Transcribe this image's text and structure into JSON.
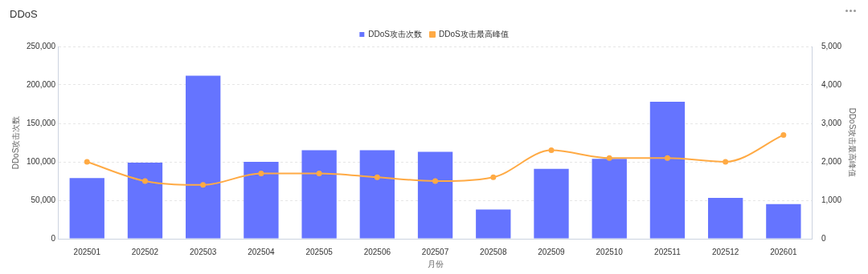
{
  "chart_data": {
    "type": "bar",
    "title": "DDoS",
    "xlabel": "月份",
    "ylabel": "DDoS攻击次数",
    "y2label": "DDoS攻击最高峰值",
    "categories": [
      "202501",
      "202502",
      "202503",
      "202504",
      "202505",
      "202506",
      "202507",
      "202508",
      "202509",
      "202510",
      "202511",
      "202512",
      "202601"
    ],
    "series": [
      {
        "name": "DDoS攻击次数",
        "color": "#6574ff",
        "values": [
          79000,
          99000,
          212000,
          100000,
          115000,
          115000,
          113000,
          38000,
          91000,
          104000,
          178000,
          53000,
          45000
        ]
      },
      {
        "name": "DDoS攻击最高峰值",
        "type": "line",
        "axis": "y2",
        "color": "#ffaa44",
        "values": [
          2000,
          1500,
          1400,
          1700,
          1700,
          1600,
          1500,
          1600,
          2300,
          2100,
          2100,
          2000,
          2700
        ]
      }
    ],
    "ylim": [
      0,
      250000
    ],
    "yticks": [
      {
        "value": 0,
        "label": "0"
      },
      {
        "value": 50000,
        "label": "50,000"
      },
      {
        "value": 100000,
        "label": "100,000"
      },
      {
        "value": 150000,
        "label": "150,000"
      },
      {
        "value": 200000,
        "label": "200,000"
      },
      {
        "value": 250000,
        "label": "250,000"
      }
    ],
    "y2lim": [
      0,
      5000
    ],
    "y2ticks": [
      {
        "value": 0,
        "label": "0"
      },
      {
        "value": 1000,
        "label": "1,000"
      },
      {
        "value": 2000,
        "label": "2,000"
      },
      {
        "value": 3000,
        "label": "3,000"
      },
      {
        "value": 4000,
        "label": "4,000"
      },
      {
        "value": 5000,
        "label": "5,000"
      }
    ],
    "grid": "y",
    "legend": "top",
    "marker": "circle"
  }
}
